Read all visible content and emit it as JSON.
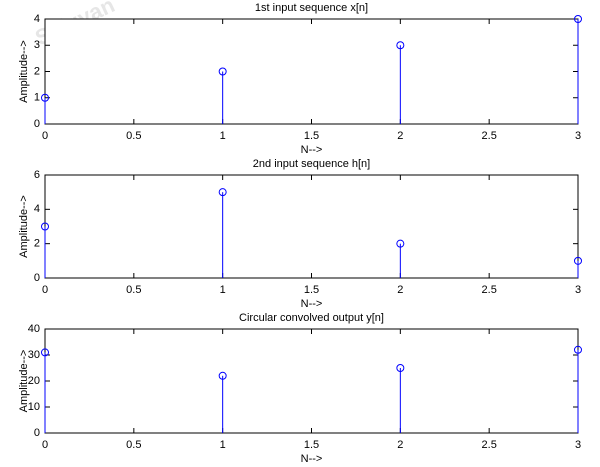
{
  "watermark": "Scigyan",
  "chart_data": [
    {
      "type": "stem",
      "title": "1st input sequence x[n]",
      "x_label": "N-->",
      "y_label": "Amplitude-->",
      "x": [
        0,
        1,
        2,
        3
      ],
      "series": [
        {
          "name": "x[n]",
          "color": "#0000ff",
          "values": [
            1,
            2,
            3,
            4
          ]
        }
      ],
      "xlim": [
        0,
        3
      ],
      "xticks": [
        0,
        0.5,
        1,
        1.5,
        2,
        2.5,
        3
      ],
      "ylim": [
        0,
        4
      ],
      "yticks": [
        0,
        1,
        2,
        3,
        4
      ],
      "grid": false
    },
    {
      "type": "stem",
      "title": "2nd input sequence h[n]",
      "x_label": "N-->",
      "y_label": "Amplitude-->",
      "x": [
        0,
        1,
        2,
        3
      ],
      "series": [
        {
          "name": "h[n]",
          "color": "#0000ff",
          "values": [
            3,
            5,
            2,
            1
          ]
        }
      ],
      "xlim": [
        0,
        3
      ],
      "xticks": [
        0,
        0.5,
        1,
        1.5,
        2,
        2.5,
        3
      ],
      "ylim": [
        0,
        6
      ],
      "yticks": [
        0,
        2,
        4,
        6
      ],
      "grid": false
    },
    {
      "type": "stem",
      "title": "Circular convolved output y[n]",
      "x_label": "N-->",
      "y_label": "Amplitude-->",
      "x": [
        0,
        1,
        2,
        3
      ],
      "series": [
        {
          "name": "y[n]",
          "color": "#0000ff",
          "values": [
            31,
            22,
            25,
            32
          ]
        }
      ],
      "xlim": [
        0,
        3
      ],
      "xticks": [
        0,
        0.5,
        1,
        1.5,
        2,
        2.5,
        3
      ],
      "ylim": [
        0,
        40
      ],
      "yticks": [
        0,
        10,
        20,
        30,
        40
      ],
      "grid": false
    }
  ]
}
